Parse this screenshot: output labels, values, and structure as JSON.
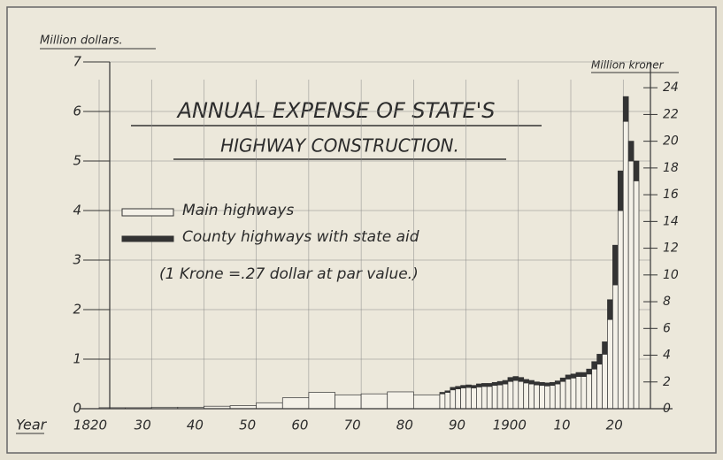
{
  "chart_data": {
    "type": "histogram",
    "title": [
      "ANNUAL EXPENSE OF STATE'S",
      "HIGHWAY CONSTRUCTION."
    ],
    "ylabel": "Million dollars.",
    "y2label": "Million kroner",
    "xlabel": "Year",
    "note": "(1 Krone =.27 dollar at par value.)",
    "stacked": true,
    "bins": [
      1820,
      1825,
      1830,
      1835,
      1840,
      1845,
      1850,
      1855,
      1860,
      1865,
      1870,
      1875,
      1880,
      1885,
      1886,
      1887,
      1888,
      1889,
      1890,
      1891,
      1892,
      1893,
      1894,
      1895,
      1896,
      1897,
      1898,
      1899,
      1900,
      1901,
      1902,
      1903,
      1904,
      1905,
      1906,
      1907,
      1908,
      1909,
      1910,
      1911,
      1912,
      1913,
      1914,
      1915,
      1916,
      1917,
      1918,
      1919,
      1920,
      1921,
      1922,
      1923
    ],
    "series": [
      {
        "name": "Main highways",
        "color": "#f4f1e8",
        "values": [
          0.02,
          0.02,
          0.03,
          0.03,
          0.05,
          0.06,
          0.12,
          0.22,
          0.33,
          0.28,
          0.3,
          0.34,
          0.28,
          0.3,
          0.33,
          0.38,
          0.4,
          0.42,
          0.43,
          0.42,
          0.44,
          0.45,
          0.45,
          0.47,
          0.48,
          0.5,
          0.55,
          0.57,
          0.55,
          0.52,
          0.5,
          0.48,
          0.47,
          0.46,
          0.47,
          0.5,
          0.55,
          0.6,
          0.62,
          0.65,
          0.65,
          0.7,
          0.8,
          0.9,
          1.1,
          1.8,
          2.5,
          4.0,
          5.8,
          5.0,
          4.6
        ]
      },
      {
        "name": "County highways with state aid",
        "color": "#333333",
        "values": [
          0,
          0,
          0,
          0,
          0,
          0,
          0,
          0,
          0,
          0,
          0,
          0,
          0,
          0.03,
          0.03,
          0.05,
          0.05,
          0.05,
          0.05,
          0.05,
          0.06,
          0.06,
          0.06,
          0.06,
          0.07,
          0.07,
          0.08,
          0.08,
          0.08,
          0.07,
          0.07,
          0.06,
          0.06,
          0.06,
          0.06,
          0.06,
          0.07,
          0.08,
          0.08,
          0.08,
          0.08,
          0.1,
          0.15,
          0.2,
          0.25,
          0.4,
          0.8,
          0.8,
          0.5,
          0.4,
          0.4
        ]
      }
    ],
    "xlim": [
      1820,
      1923
    ],
    "xticks": [
      {
        "value": 1820,
        "label": "1820"
      },
      {
        "value": 1830,
        "label": "30"
      },
      {
        "value": 1840,
        "label": "40"
      },
      {
        "value": 1850,
        "label": "50"
      },
      {
        "value": 1860,
        "label": "60"
      },
      {
        "value": 1870,
        "label": "70"
      },
      {
        "value": 1880,
        "label": "80"
      },
      {
        "value": 1890,
        "label": "90"
      },
      {
        "value": 1900,
        "label": "1900"
      },
      {
        "value": 1910,
        "label": "10"
      },
      {
        "value": 1920,
        "label": "20"
      }
    ],
    "ylim": [
      0,
      7
    ],
    "yticks": [
      0,
      1,
      2,
      3,
      4,
      5,
      6,
      7
    ],
    "y2lim": [
      0,
      25.93
    ],
    "y2ticks": [
      0,
      2,
      4,
      6,
      8,
      10,
      12,
      14,
      16,
      18,
      20,
      22,
      24
    ],
    "grid": true
  }
}
